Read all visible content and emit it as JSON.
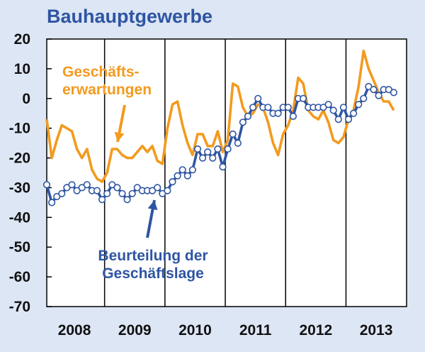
{
  "chart_data": {
    "type": "line",
    "title": "Bauhauptgewerbe",
    "ylim": [
      -70,
      20
    ],
    "yticks": [
      "20",
      "10",
      "0",
      "-10",
      "-20",
      "-30",
      "-40",
      "-50",
      "-60",
      "-70"
    ],
    "xticks": [
      "2008",
      "2009",
      "2010",
      "2011",
      "2012",
      "2013"
    ],
    "grid": false,
    "series": [
      {
        "name": "Geschäfts-erwartungen",
        "label_lines": [
          "Geschäfts-",
          "erwartungen"
        ],
        "color": "#f39a1e",
        "values": [
          -7,
          -20,
          -14,
          -9,
          -10,
          -11,
          -17,
          -20,
          -17,
          -24,
          -27,
          -28,
          -25,
          -17,
          -17,
          -19,
          -20,
          -20,
          -18,
          -16,
          -18,
          -16,
          -21,
          -22,
          -10,
          -2,
          -1,
          -9,
          -15,
          -19,
          -12,
          -12,
          -16,
          -16,
          -11,
          -18,
          -14,
          5,
          4,
          -3,
          -6,
          -5,
          -2,
          -3,
          -8,
          -15,
          -19,
          -12,
          -9,
          -4,
          7,
          5,
          -4,
          -6,
          -7,
          -4,
          -8,
          -14,
          -15,
          -13,
          -7,
          -4,
          4,
          16,
          10,
          6,
          2,
          -1,
          -1,
          -4
        ]
      },
      {
        "name": "Beurteilung der Geschäftslage",
        "label_lines": [
          "Beurteilung der",
          "Geschäftslage"
        ],
        "color": "#2e55a2",
        "values": [
          -29,
          -35,
          -33,
          -32,
          -30,
          -29,
          -31,
          -30,
          -29,
          -31,
          -31,
          -34,
          -32,
          -29,
          -30,
          -32,
          -34,
          -32,
          -30,
          -31,
          -31,
          -31,
          -30,
          -32,
          -31,
          -28,
          -26,
          -24,
          -26,
          -24,
          -17,
          -20,
          -18,
          -20,
          -17,
          -23,
          -17,
          -12,
          -15,
          -8,
          -6,
          -3,
          0,
          -3,
          -3,
          -5,
          -5,
          -3,
          -3,
          -6,
          0,
          0,
          -3,
          -3,
          -3,
          -3,
          -2,
          -4,
          -7,
          -3,
          -7,
          -5,
          -2,
          0,
          4,
          3,
          1,
          3,
          3,
          2
        ]
      }
    ]
  }
}
